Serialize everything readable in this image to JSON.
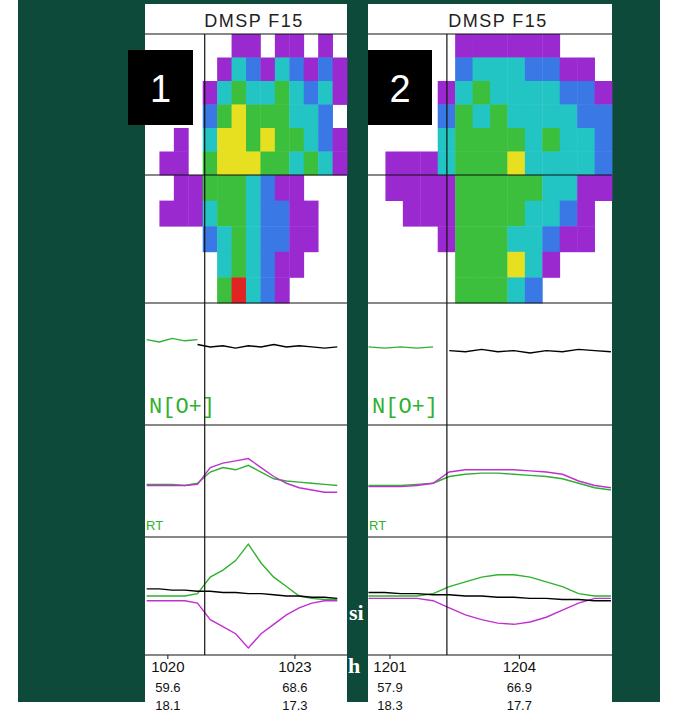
{
  "slide": {
    "overlay_text": [
      "si",
      "h"
    ]
  },
  "chart_data": [
    {
      "type": "spectrogram_stack",
      "title": "DMSP F15",
      "annotations": [
        "1"
      ],
      "xlim": [
        1019.46,
        1024.23
      ],
      "xticks": [
        1020,
        1023
      ],
      "lat": [
        59.6,
        68.6
      ],
      "mlt": [
        18.1,
        17.3
      ],
      "reference_x": 1020.87,
      "electron_cells": [
        [
          0,
          0,
          0,
          0,
          0,
          0,
          1,
          1,
          0,
          1,
          1,
          0,
          1,
          0
        ],
        [
          0,
          0,
          0,
          0,
          0,
          1,
          3,
          2,
          1,
          3,
          2,
          1,
          2,
          1
        ],
        [
          0,
          0,
          0,
          0,
          1,
          3,
          4,
          3,
          3,
          4,
          3,
          2,
          3,
          1
        ],
        [
          0,
          0,
          0,
          0,
          2,
          4,
          5,
          4,
          4,
          4,
          3,
          3,
          2,
          0
        ],
        [
          0,
          0,
          1,
          0,
          3,
          5,
          5,
          4,
          5,
          4,
          4,
          3,
          2,
          1
        ],
        [
          0,
          1,
          1,
          0,
          4,
          5,
          5,
          5,
          4,
          4,
          3,
          4,
          3,
          1
        ]
      ],
      "ion_cells": [
        [
          0,
          0,
          1,
          1,
          4,
          4,
          4,
          3,
          2,
          1,
          1,
          0,
          0,
          0
        ],
        [
          0,
          1,
          1,
          1,
          3,
          4,
          4,
          3,
          2,
          2,
          1,
          1,
          0,
          0
        ],
        [
          0,
          0,
          0,
          0,
          2,
          3,
          4,
          3,
          2,
          2,
          1,
          1,
          0,
          0
        ],
        [
          0,
          0,
          0,
          0,
          0,
          3,
          4,
          3,
          2,
          1,
          1,
          0,
          0,
          0
        ],
        [
          0,
          0,
          0,
          0,
          0,
          4,
          6,
          3,
          2,
          1,
          0,
          0,
          0,
          0
        ]
      ],
      "x": [
        1019.5,
        1019.8,
        1020.1,
        1020.4,
        1020.7,
        1021.0,
        1021.3,
        1021.6,
        1021.9,
        1022.2,
        1022.5,
        1022.8,
        1023.1,
        1023.4,
        1023.7,
        1024.0
      ],
      "rows": [
        {
          "label": "N[O+]",
          "ylim": [
            0,
            100
          ],
          "series": [
            {
              "color": "#2fb02f",
              "values": [
                70,
                68,
                71,
                69,
                70,
                null,
                null,
                null,
                null,
                null,
                null,
                null,
                null,
                null,
                null,
                null
              ]
            },
            {
              "color": "#000000",
              "values": [
                null,
                null,
                null,
                null,
                66,
                64,
                65,
                63,
                65,
                64,
                66,
                64,
                65,
                64,
                63,
                64
              ]
            }
          ]
        },
        {
          "label": "RT",
          "ylim": [
            0,
            100
          ],
          "series": [
            {
              "color": "#2fb02f",
              "values": [
                47,
                47,
                47,
                46,
                48,
                58,
                62,
                60,
                64,
                58,
                52,
                50,
                49,
                48,
                47,
                46
              ]
            },
            {
              "color": "#c030d0",
              "values": [
                46,
                46,
                46,
                46,
                47,
                62,
                66,
                68,
                70,
                62,
                54,
                48,
                44,
                42,
                40,
                40
              ]
            }
          ]
        },
        {
          "ylim": [
            0,
            100
          ],
          "series": [
            {
              "color": "#2fb02f",
              "values": [
                50,
                50,
                50,
                50,
                52,
                66,
                72,
                80,
                94,
                78,
                66,
                58,
                50,
                48,
                47,
                47
              ]
            },
            {
              "color": "#c030d0",
              "values": [
                46,
                46,
                46,
                46,
                44,
                30,
                24,
                18,
                6,
                18,
                26,
                34,
                40,
                44,
                46,
                46
              ]
            },
            {
              "color": "#000000",
              "values": [
                56,
                56,
                55,
                55,
                54,
                54,
                53,
                53,
                52,
                52,
                51,
                50,
                50,
                49,
                49,
                48
              ]
            }
          ]
        }
      ]
    },
    {
      "type": "spectrogram_stack",
      "title": "DMSP F15",
      "annotations": [
        "2"
      ],
      "xlim": [
        1200.49,
        1206.15
      ],
      "xticks": [
        1201,
        1204
      ],
      "lat": [
        57.9,
        66.9
      ],
      "mlt": [
        18.3,
        17.7
      ],
      "reference_x": 1202.32,
      "electron_cells": [
        [
          0,
          0,
          0,
          0,
          0,
          1,
          1,
          1,
          1,
          1,
          1,
          0,
          0,
          0
        ],
        [
          0,
          0,
          0,
          0,
          0,
          2,
          3,
          3,
          3,
          2,
          2,
          1,
          1,
          0
        ],
        [
          0,
          0,
          0,
          0,
          1,
          3,
          4,
          3,
          3,
          3,
          3,
          2,
          2,
          1
        ],
        [
          0,
          0,
          0,
          0,
          2,
          4,
          3,
          4,
          3,
          3,
          3,
          3,
          2,
          2
        ],
        [
          0,
          0,
          0,
          0,
          3,
          4,
          4,
          4,
          4,
          3,
          4,
          3,
          3,
          2
        ],
        [
          0,
          1,
          1,
          1,
          3,
          4,
          4,
          4,
          5,
          3,
          3,
          3,
          3,
          2
        ]
      ],
      "ion_cells": [
        [
          0,
          1,
          1,
          1,
          1,
          4,
          4,
          4,
          4,
          4,
          3,
          3,
          1,
          1
        ],
        [
          0,
          0,
          1,
          1,
          1,
          4,
          4,
          4,
          4,
          3,
          3,
          2,
          1,
          0
        ],
        [
          0,
          0,
          0,
          0,
          1,
          4,
          4,
          4,
          3,
          3,
          2,
          1,
          1,
          0
        ],
        [
          0,
          0,
          0,
          0,
          0,
          4,
          4,
          4,
          5,
          3,
          1,
          0,
          0,
          0
        ],
        [
          0,
          0,
          0,
          0,
          0,
          4,
          4,
          4,
          3,
          2,
          0,
          0,
          0,
          0
        ]
      ],
      "x": [
        1200.5,
        1200.875,
        1201.25,
        1201.625,
        1202.0,
        1202.375,
        1202.75,
        1203.125,
        1203.5,
        1203.875,
        1204.25,
        1204.625,
        1205.0,
        1205.375,
        1205.75,
        1206.125
      ],
      "rows": [
        {
          "label": "N[O+]",
          "ylim": [
            0,
            100
          ],
          "series": [
            {
              "color": "#2fb02f",
              "values": [
                64,
                63,
                64,
                63,
                64,
                null,
                null,
                null,
                null,
                null,
                null,
                null,
                null,
                null,
                null,
                null
              ]
            },
            {
              "color": "#000000",
              "values": [
                null,
                null,
                null,
                null,
                null,
                61,
                60,
                62,
                60,
                61,
                59,
                61,
                60,
                62,
                61,
                60
              ]
            }
          ]
        },
        {
          "label": "RT",
          "ylim": [
            0,
            100
          ],
          "series": [
            {
              "color": "#2fb02f",
              "values": [
                46,
                46,
                46,
                47,
                48,
                54,
                56,
                57,
                57,
                56,
                55,
                54,
                52,
                48,
                44,
                42
              ]
            },
            {
              "color": "#c030d0",
              "values": [
                45,
                45,
                45,
                46,
                48,
                58,
                60,
                60,
                60,
                60,
                59,
                58,
                56,
                50,
                46,
                44
              ]
            }
          ]
        },
        {
          "ylim": [
            0,
            100
          ],
          "series": [
            {
              "color": "#2fb02f",
              "values": [
                50,
                50,
                50,
                50,
                52,
                58,
                62,
                66,
                68,
                68,
                66,
                62,
                58,
                52,
                50,
                50
              ]
            },
            {
              "color": "#c030d0",
              "values": [
                48,
                48,
                48,
                48,
                46,
                40,
                34,
                30,
                27,
                26,
                28,
                32,
                38,
                44,
                48,
                48
              ]
            },
            {
              "color": "#000000",
              "values": [
                53,
                53,
                52,
                52,
                51,
                51,
                50,
                50,
                49,
                49,
                48,
                48,
                47,
                47,
                46,
                46
              ]
            }
          ]
        }
      ]
    }
  ]
}
